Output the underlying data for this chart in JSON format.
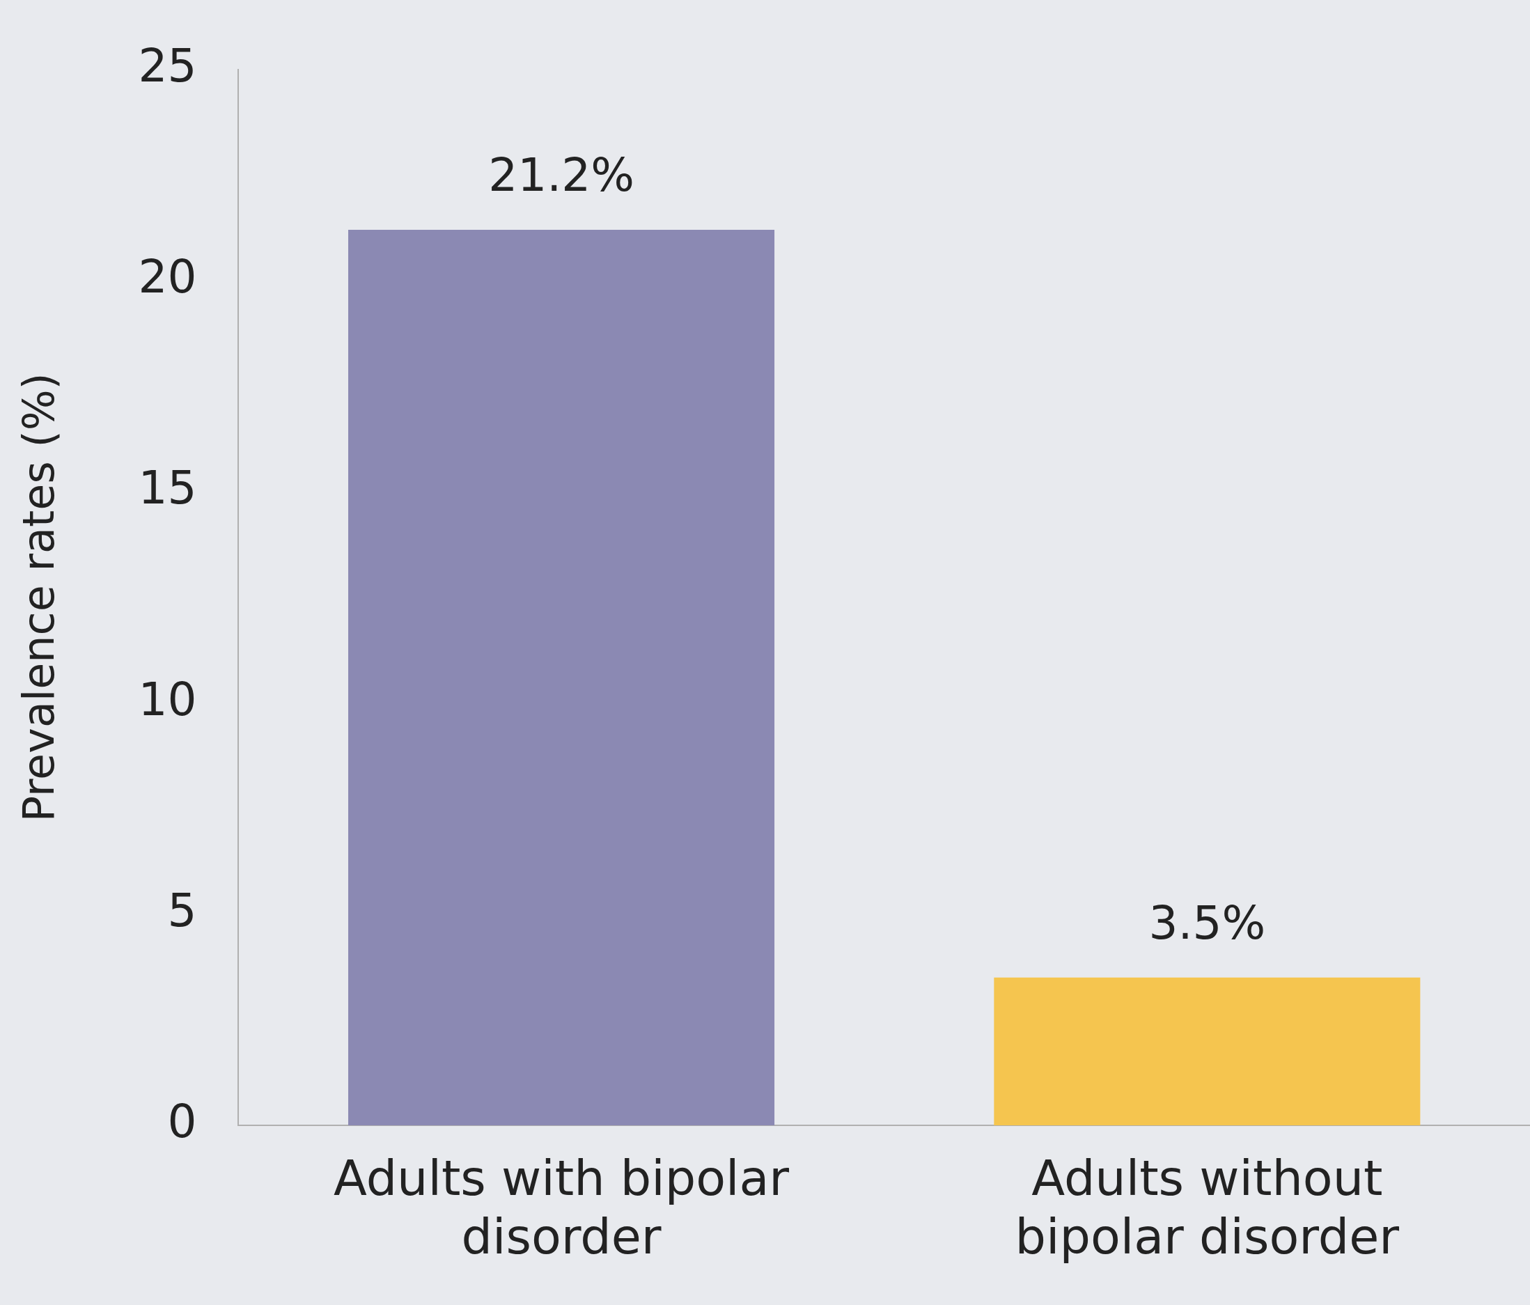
{
  "chart_data": {
    "type": "bar",
    "ylabel": "Prevalence rates (%)",
    "categories": [
      "Adults with bipolar disorder",
      "Adults without bipolar disorder"
    ],
    "values": [
      21.2,
      3.5
    ],
    "colors": [
      "#8b89b3",
      "#f5c54f"
    ],
    "value_labels": [
      "21.2%",
      "3.5%"
    ],
    "ylim": [
      0,
      25
    ],
    "yticks": [
      0,
      5,
      10,
      15,
      20,
      25
    ],
    "grid": false,
    "legend": false
  }
}
